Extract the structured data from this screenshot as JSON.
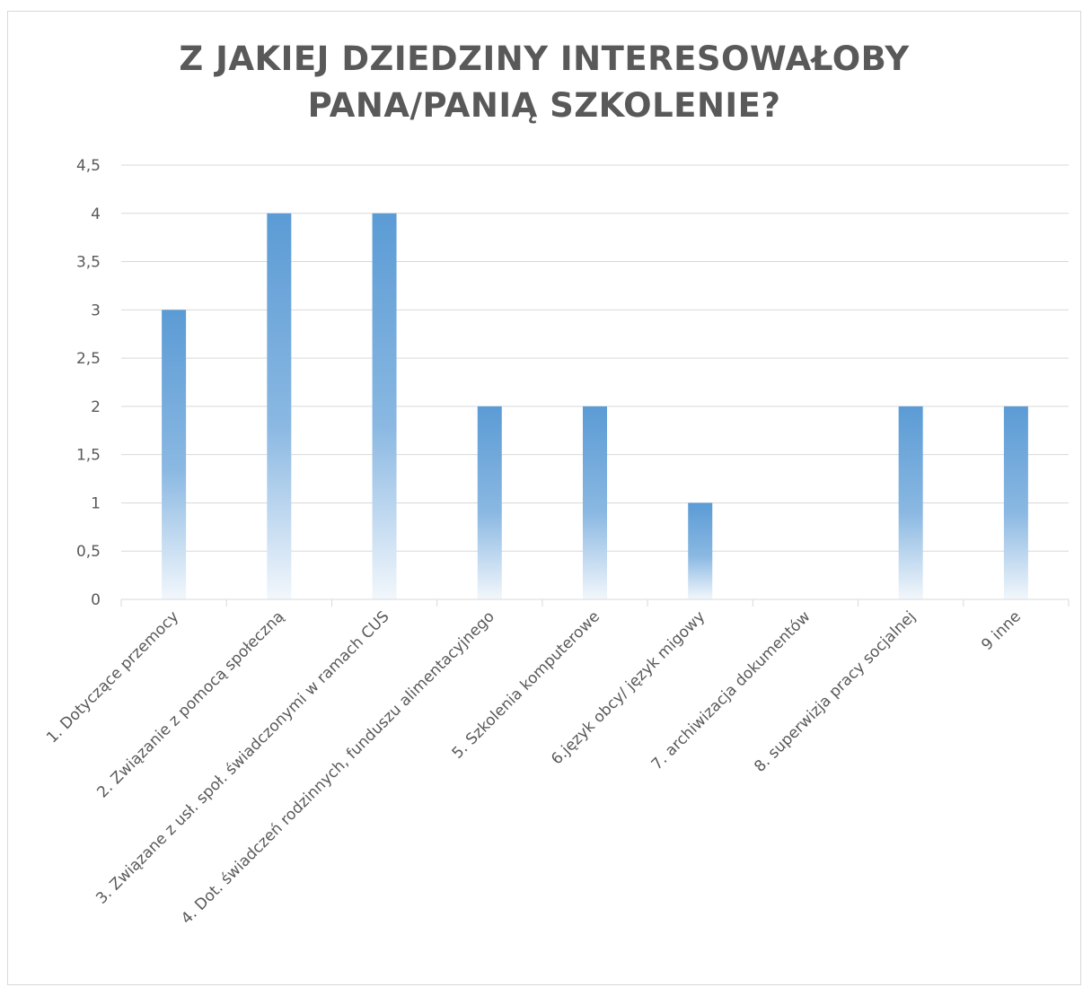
{
  "chart_data": {
    "type": "bar",
    "title_lines": [
      "Z JAKIEJ DZIEDZINY INTERESOWAŁOBY",
      "PANA/PANIĄ SZKOLENIE?"
    ],
    "categories": [
      "1. Dotyczące przemocy",
      "2. Związanie z pomocą społeczną",
      "3. Związane z usł. społ. świadczonymi w ramach CUS",
      "4. Dot. świadczeń rodzinnych, funduszu alimentacyjnego",
      "5. Szkolenia komputerowe",
      "6.język obcy/ język migowy",
      "7. archiwizacja dokumentów",
      "8. superwizja pracy socjalnej",
      "9 inne"
    ],
    "values": [
      3,
      4,
      4,
      2,
      2,
      1,
      0,
      2,
      2
    ],
    "ylim": [
      0,
      4.5
    ],
    "yticks": [
      "0",
      "0,5",
      "1",
      "1,5",
      "2",
      "2,5",
      "3",
      "3,5",
      "4",
      "4,5"
    ],
    "grid": true,
    "legend": "none",
    "colors": {
      "bar": "#5b9bd5",
      "bar_fade": "#ffffff",
      "grid": "#d9d9d9",
      "text": "#595959"
    }
  }
}
